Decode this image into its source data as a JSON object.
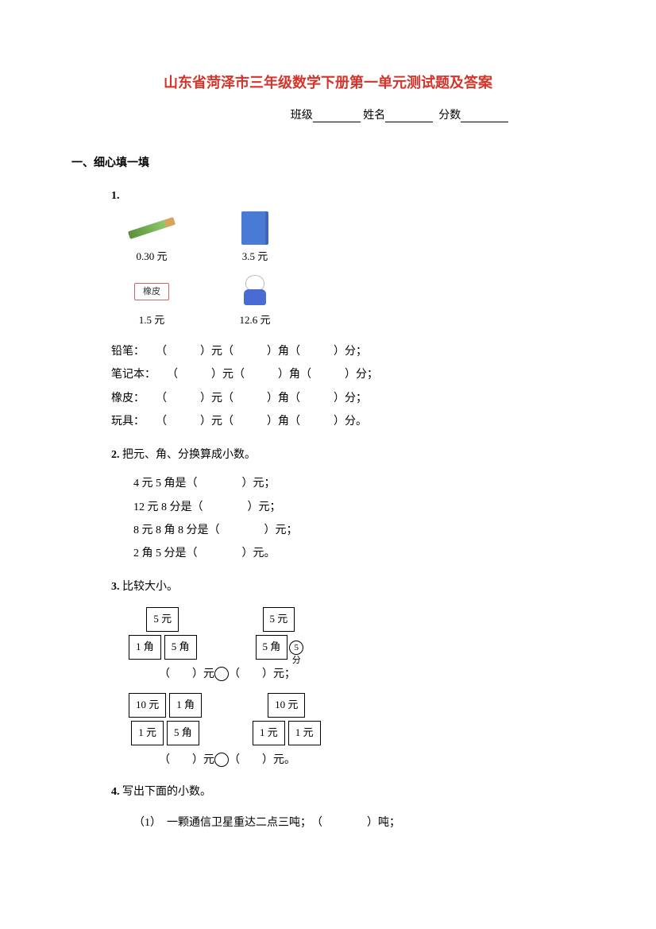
{
  "title": {
    "text": "山东省菏泽市三年级数学下册第一单元测试题及答案",
    "color": "#d4342a"
  },
  "info": {
    "class_label": "班级",
    "name_label": "姓名",
    "score_label": "分数"
  },
  "section1": {
    "heading": "一、细心填一填",
    "q1": {
      "num": "1.",
      "items": [
        {
          "price": "0.30 元",
          "kind": "pencil"
        },
        {
          "price": "3.5 元",
          "kind": "notebook"
        },
        {
          "price": "1.5 元",
          "kind": "eraser",
          "caption": "橡皮"
        },
        {
          "price": "12.6 元",
          "kind": "toy"
        }
      ],
      "rows": [
        {
          "label": "铅笔：",
          "tail": "；"
        },
        {
          "label": "笔记本：",
          "tail": "；"
        },
        {
          "label": "橡皮：",
          "tail": "；"
        },
        {
          "label": "玩具：",
          "tail": "。"
        }
      ],
      "units": {
        "yuan": "元",
        "jiao": "角",
        "fen": "分"
      }
    },
    "q2": {
      "num": "2.",
      "text": "把元、角、分换算成小数。",
      "lines": [
        "4 元 5 角是（　　　　）元；",
        "12 元 8 分是（　　　　）元；",
        "8 元 8 角 8 分是（　　　　）元；",
        "2 角 5 分是（　　　　）元。"
      ]
    },
    "q3": {
      "num": "3.",
      "text": "比较大小。",
      "set1": {
        "left": {
          "top": "5 元",
          "bl": "1 角",
          "br": "5 角"
        },
        "right": {
          "top": "5 元",
          "bl": "5 角",
          "br": "5 分",
          "br_circle": true
        },
        "compare": "（　　）元 ○（　　）元；"
      },
      "set2": {
        "left": {
          "top1": "10 元",
          "top2": "1 角",
          "bl": "1 元",
          "br": "5 角"
        },
        "right": {
          "top": "10 元",
          "bl": "1 元",
          "br": "1 元"
        },
        "compare": "（　　）元 ○（　　）元。"
      }
    },
    "q4": {
      "num": "4.",
      "text": "写出下面的小数。",
      "line1": "（1）　一颗通信卫星重达二点三吨；　（　　　　）吨；"
    }
  }
}
